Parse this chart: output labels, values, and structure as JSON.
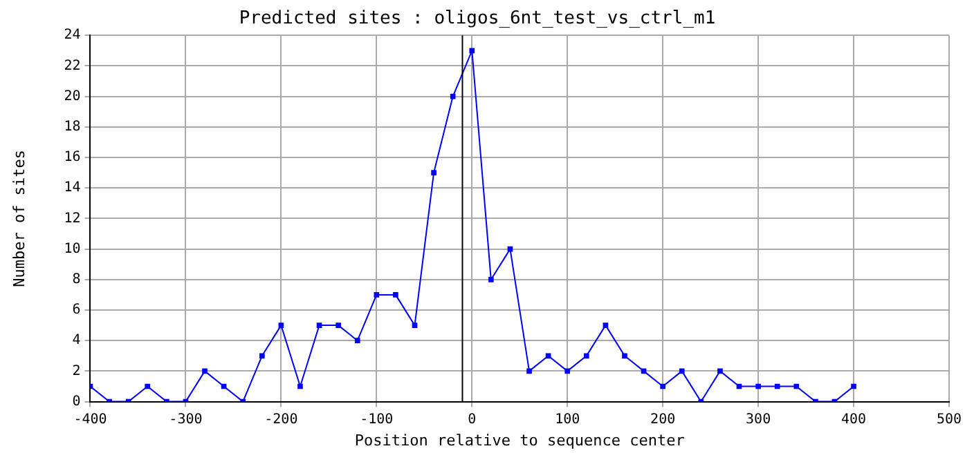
{
  "chart_data": {
    "type": "line",
    "title": "Predicted sites : oligos_6nt_test_vs_ctrl_m1",
    "xlabel": "Position relative to sequence center",
    "ylabel": "Number of sites",
    "x": [
      -400,
      -380,
      -360,
      -340,
      -320,
      -300,
      -280,
      -260,
      -240,
      -220,
      -200,
      -180,
      -160,
      -140,
      -120,
      -100,
      -80,
      -60,
      -40,
      -20,
      0,
      20,
      40,
      60,
      80,
      100,
      120,
      140,
      160,
      180,
      200,
      220,
      240,
      260,
      280,
      300,
      320,
      340,
      360,
      380,
      400
    ],
    "series": [
      {
        "color": "#0000ff",
        "values": [
          1,
          0,
          0,
          1,
          0,
          0,
          2,
          1,
          0,
          3,
          5,
          1,
          5,
          5,
          4,
          7,
          7,
          5,
          15,
          20,
          23,
          8,
          10,
          2,
          3,
          2,
          3,
          5,
          3,
          2,
          1,
          2,
          0,
          2,
          1,
          1,
          1,
          1,
          0,
          0,
          1
        ]
      }
    ],
    "xlim": [
      -400,
      500
    ],
    "xticks": [
      -400,
      -300,
      -200,
      -100,
      0,
      100,
      200,
      300,
      400,
      500
    ],
    "ylim": [
      0,
      24
    ],
    "yticks": [
      0,
      2,
      4,
      6,
      8,
      10,
      12,
      14,
      16,
      18,
      20,
      22,
      24
    ],
    "ref_lines": [
      {
        "axis": "x",
        "value": -10,
        "color": "#000000"
      }
    ],
    "grid": true,
    "legend": false,
    "marker": "square",
    "line_style": "solid"
  }
}
